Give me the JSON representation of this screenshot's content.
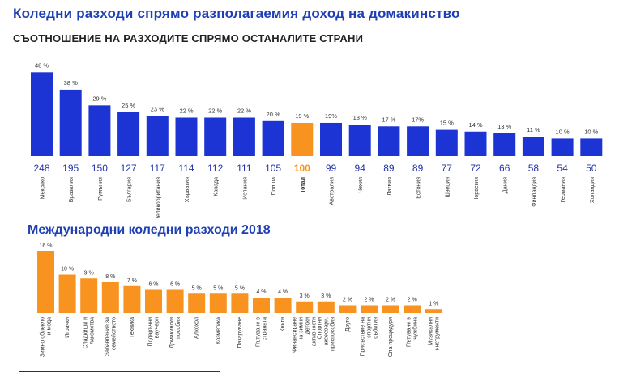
{
  "header": {
    "title": "Коледни разходи спрямо разполагаемия доход на домакинство",
    "subtitle": "СЪОТНОШЕНИЕ НА РАЗХОДИТЕ СПРЯМО ОСТАНАЛИТЕ СТРАНИ"
  },
  "section2": {
    "title": "Международни коледни разходи 2018"
  },
  "colors": {
    "blue": "#1c34d4",
    "orange": "#f7931e",
    "title_blue": "#1f3fb5"
  },
  "chart_data": [
    {
      "type": "bar",
      "title": "Коледни разходи спрямо разполагаемия доход на домакинство",
      "subtitle": "СЪОТНОШЕНИЕ НА РАЗХОДИТЕ СПРЯМО ОСТАНАЛИТЕ СТРАНИ",
      "categories": [
        "Мексико",
        "Бразилия",
        "Румъния",
        "България",
        "Великобритания",
        "Хърватия",
        "Канада",
        "Испания",
        "Полша",
        "Тотал",
        "Австралия",
        "Чехия",
        "Латвия",
        "Естония",
        "Швеция",
        "Норвегия",
        "Дания",
        "Финландия",
        "Германия",
        "Холандия"
      ],
      "series": [
        {
          "values": [
            48,
            38,
            29,
            25,
            23,
            22,
            22,
            22,
            20,
            19,
            19,
            18,
            17,
            17,
            15,
            14,
            13,
            11,
            10,
            10
          ],
          "value_labels": [
            "48 %",
            "38 %",
            "29 %",
            "25 %",
            "23 %",
            "22 %",
            "22 %",
            "22 %",
            "20 %",
            "19 %",
            "19%",
            "18 %",
            "17 %",
            "17%",
            "15 %",
            "14 %",
            "13 %",
            "11 %",
            "10 %",
            "10 %"
          ]
        }
      ],
      "index_values": [
        248,
        195,
        150,
        127,
        117,
        114,
        112,
        111,
        105,
        100,
        99,
        94,
        89,
        89,
        77,
        72,
        66,
        58,
        54,
        50
      ],
      "highlight_category": "Тотал",
      "ylim": [
        0,
        50
      ],
      "grid": false
    },
    {
      "type": "bar",
      "title": "Международни коледни разходи 2018",
      "categories": [
        "Зимно облекло и мода",
        "Играчки",
        "Сладкиши и лакомства",
        "Забавление за семейството",
        "Техника",
        "Подаръчни ваучери",
        "Домакински пособия",
        "Алкохол",
        "Козметика",
        "Пазаруване",
        "Пътуване в страната",
        "Книги",
        "Финансиране на зимни детски активности",
        "Спортни аксесоари, приспособия",
        "Друго",
        "Присъствие на спортни събития",
        "Спа процедури",
        "Пътуване в чужбина",
        "Музикални инструменти"
      ],
      "series": [
        {
          "values": [
            16,
            10,
            9,
            8,
            7,
            6,
            6,
            5,
            5,
            5,
            4,
            4,
            3,
            3,
            2,
            2,
            2,
            2,
            1
          ],
          "value_labels": [
            "16 %",
            "10 %",
            "9 %",
            "8 %",
            "7 %",
            "6 %",
            "6 %",
            "5 %",
            "5 %",
            "5 %",
            "4 %",
            "4 %",
            "3 %",
            "3 %",
            "2 %",
            "2 %",
            "2 %",
            "2 %",
            "1 %"
          ]
        }
      ],
      "ylim": [
        0,
        16
      ],
      "grid": false
    }
  ]
}
